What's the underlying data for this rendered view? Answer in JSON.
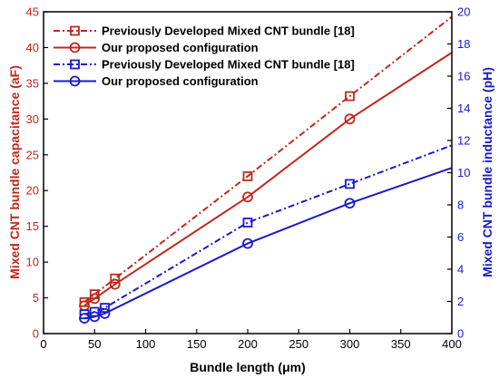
{
  "chart_data": {
    "type": "line",
    "x_label": "Bundle length (μm)",
    "y_left_label": "Mixed CNT bundle capacitance (aF)",
    "y_right_label": "Mixed CNT bundle inductance (pH)",
    "x_range": [
      0,
      400
    ],
    "y_left_range": [
      0,
      45
    ],
    "y_right_range": [
      0,
      20
    ],
    "x_ticks": [
      "0",
      "50",
      "100",
      "150",
      "200",
      "250",
      "300",
      "350",
      "400"
    ],
    "y_left_ticks": [
      "0",
      "5",
      "10",
      "15",
      "20",
      "25",
      "30",
      "35",
      "40",
      "45"
    ],
    "y_right_ticks": [
      "0",
      "2",
      "4",
      "6",
      "8",
      "10",
      "12",
      "14",
      "16",
      "18",
      "20"
    ],
    "colors": {
      "left_axis": "#c0281c",
      "right_axis": "#1a1acc"
    },
    "legend_position": "top-left",
    "series": [
      {
        "name": "Previously Developed Mixed CNT bundle [18]",
        "axis": "left",
        "color": "#c0281c",
        "line_style": "dashdot",
        "marker": "square",
        "x": [
          40,
          50,
          70,
          200,
          300
        ],
        "y": [
          4.4,
          5.5,
          7.7,
          22.0,
          33.2
        ],
        "line_end": [
          400,
          44.3
        ]
      },
      {
        "name": "Our proposed configuration",
        "axis": "left",
        "color": "#c0281c",
        "line_style": "solid",
        "marker": "circle",
        "x": [
          40,
          50,
          70,
          200,
          300
        ],
        "y": [
          3.9,
          4.9,
          6.9,
          19.1,
          30.0
        ],
        "line_end": [
          400,
          39.3
        ]
      },
      {
        "name": "Previously Developed Mixed CNT bundle [18]",
        "axis": "right",
        "color": "#1a1acc",
        "line_style": "dashdot",
        "marker": "square",
        "x": [
          40,
          50,
          60,
          200,
          300
        ],
        "y": [
          1.2,
          1.35,
          1.6,
          6.9,
          9.3
        ],
        "line_end": [
          400,
          11.7
        ]
      },
      {
        "name": "Our proposed configuration",
        "axis": "right",
        "color": "#1a1acc",
        "line_style": "solid",
        "marker": "circle",
        "x": [
          40,
          50,
          60,
          200,
          300
        ],
        "y": [
          0.95,
          1.05,
          1.25,
          5.6,
          8.1
        ],
        "line_end": [
          400,
          10.3
        ]
      }
    ]
  }
}
